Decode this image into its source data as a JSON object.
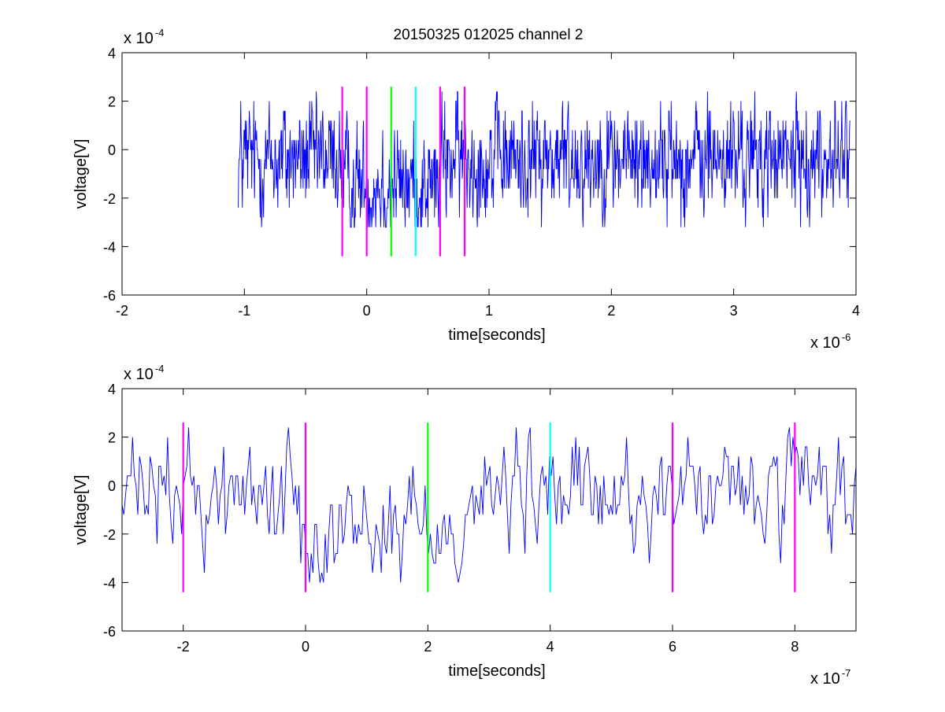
{
  "figure": {
    "title": "20150325 012025 channel 2",
    "colors": {
      "signal": "#0000ff",
      "marker_magenta": "#ff00ff",
      "marker_green": "#00ff00",
      "marker_cyan": "#00ffff",
      "axes": "#000000",
      "background": "#ffffff"
    }
  },
  "chart_data": [
    {
      "type": "line",
      "title": "20150325 012025 channel 2",
      "xlabel": "time[seconds]",
      "ylabel": "voltage[V]",
      "x_exponent_base": "x 10",
      "x_exponent_power": "-6",
      "y_exponent_base": "x 10",
      "y_exponent_power": "-4",
      "xlim": [
        -2,
        4
      ],
      "ylim": [
        -6,
        4
      ],
      "grid": false,
      "x_ticks": [
        -2,
        -1,
        0,
        1,
        2,
        3,
        4
      ],
      "y_ticks": [
        -6,
        -4,
        -2,
        0,
        2,
        4
      ],
      "x_tick_labels": [
        "-2",
        "-1",
        "0",
        "1",
        "2",
        "3",
        "4"
      ],
      "y_tick_labels": [
        "-6",
        "-4",
        "-2",
        "0",
        "2",
        "4"
      ],
      "signal": {
        "x_start": -1.05,
        "x_end": 3.95,
        "quantum": 0.4,
        "baseline": -0.4,
        "noise_amplitude": 1.2,
        "min": -3.2,
        "max": 2.4,
        "dip_start": -0.2,
        "dip_end": 0.6,
        "dip_depth": -1.0
      },
      "markers": [
        {
          "x": -0.2,
          "color": "magenta",
          "y_min": -4.4,
          "y_max": 2.6
        },
        {
          "x": 0.0,
          "color": "magenta",
          "y_min": -4.4,
          "y_max": 2.6
        },
        {
          "x": 0.2,
          "color": "green",
          "y_min": -4.4,
          "y_max": 2.6
        },
        {
          "x": 0.4,
          "color": "cyan",
          "y_min": -4.4,
          "y_max": 2.6
        },
        {
          "x": 0.6,
          "color": "magenta",
          "y_min": -4.4,
          "y_max": 2.6
        },
        {
          "x": 0.8,
          "color": "magenta",
          "y_min": -4.4,
          "y_max": 2.6
        }
      ]
    },
    {
      "type": "line",
      "title": "",
      "xlabel": "time[seconds]",
      "ylabel": "voltage[V]",
      "x_exponent_base": "x 10",
      "x_exponent_power": "-7",
      "y_exponent_base": "x 10",
      "y_exponent_power": "-4",
      "xlim": [
        -3,
        9
      ],
      "ylim": [
        -6,
        4
      ],
      "grid": false,
      "x_ticks": [
        -2,
        0,
        2,
        4,
        6,
        8
      ],
      "y_ticks": [
        -6,
        -4,
        -2,
        0,
        2,
        4
      ],
      "x_tick_labels": [
        "-2",
        "0",
        "2",
        "4",
        "6",
        "8"
      ],
      "y_tick_labels": [
        "-6",
        "-4",
        "-2",
        "0",
        "2",
        "4"
      ],
      "signal": {
        "x_start": -3,
        "x_end": 9,
        "quantum": 0.4,
        "baseline": -0.4,
        "noise_amplitude": 1.2,
        "min": -4.0,
        "max": 2.4,
        "dip_start": -0.1,
        "dip_end": 2.6,
        "dip_depth": -1.2
      },
      "markers": [
        {
          "x": -2,
          "color": "magenta",
          "y_min": -4.4,
          "y_max": 2.6
        },
        {
          "x": 0,
          "color": "magenta",
          "y_min": -4.4,
          "y_max": 2.6
        },
        {
          "x": 2,
          "color": "green",
          "y_min": -4.4,
          "y_max": 2.6
        },
        {
          "x": 4,
          "color": "cyan",
          "y_min": -4.4,
          "y_max": 2.6
        },
        {
          "x": 6,
          "color": "magenta",
          "y_min": -4.4,
          "y_max": 2.6
        },
        {
          "x": 8,
          "color": "magenta",
          "y_min": -4.4,
          "y_max": 2.6
        }
      ]
    }
  ]
}
